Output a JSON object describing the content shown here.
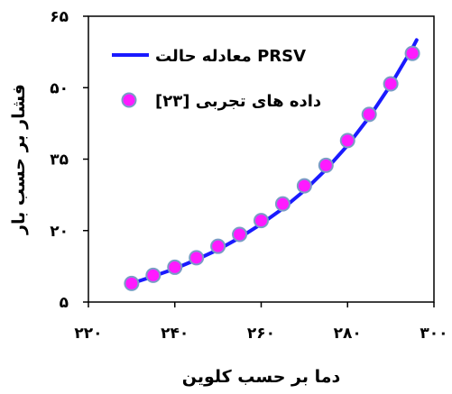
{
  "chart_data": {
    "type": "scatter",
    "title": "",
    "xlabel": "دما بر حسب کلوین",
    "ylabel": "فشار بر حسب بار",
    "xlim": [
      220,
      300
    ],
    "ylim": [
      5,
      65
    ],
    "x_ticks": [
      220,
      240,
      260,
      280,
      300
    ],
    "y_ticks": [
      5,
      20,
      35,
      50,
      65
    ],
    "x_tick_labels": [
      "۲۲۰",
      "۲۴۰",
      "۲۶۰",
      "۲۸۰",
      "۳۰۰"
    ],
    "y_tick_labels": [
      "۵",
      "۲۰",
      "۳۵",
      "۵۰",
      "۶۵"
    ],
    "grid": false,
    "legend_position": "top-right",
    "series": [
      {
        "name": "معادله حالت PRSV",
        "kind": "line",
        "color": "#1a1aff",
        "x": [
          230,
          235,
          240,
          245,
          250,
          255,
          260,
          265,
          270,
          275,
          280,
          285,
          290,
          295,
          296
        ],
        "y": [
          8.9,
          10.4,
          12.0,
          13.9,
          16.0,
          18.5,
          21.4,
          24.6,
          28.4,
          32.8,
          37.9,
          43.8,
          50.6,
          58.3,
          60.0
        ]
      },
      {
        "name": "داده های تجربی [۲۳]",
        "kind": "scatter",
        "color": "#ff1aff",
        "edge_color": "#7a9cc6",
        "x": [
          230,
          235,
          240,
          245,
          250,
          255,
          260,
          265,
          270,
          275,
          280,
          285,
          290,
          295
        ],
        "y": [
          8.9,
          10.6,
          12.3,
          14.3,
          16.7,
          19.2,
          22.1,
          25.6,
          29.4,
          33.7,
          38.9,
          44.4,
          50.8,
          57.2
        ]
      }
    ]
  }
}
